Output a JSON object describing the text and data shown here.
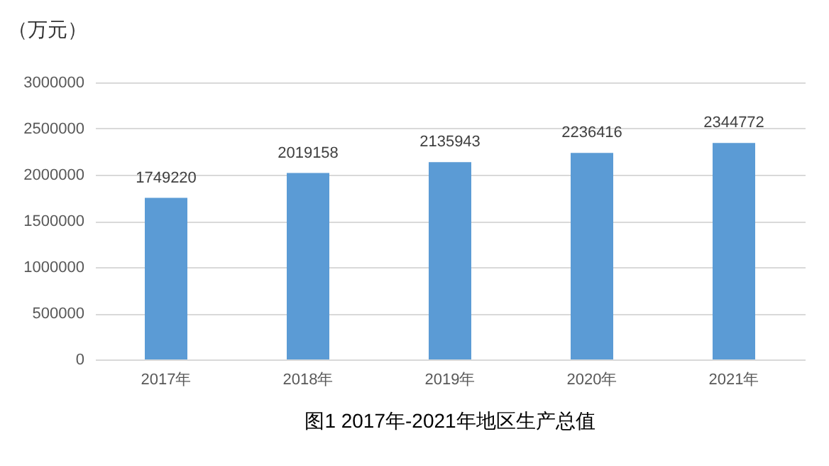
{
  "chart_data": {
    "type": "bar",
    "title": "图1  2017年-2021年地区生产总值",
    "ylabel": "（万元）",
    "categories": [
      "2017年",
      "2018年",
      "2019年",
      "2020年",
      "2021年"
    ],
    "values": [
      1749220,
      2019158,
      2135943,
      2236416,
      2344772
    ],
    "color": "#5b9bd5",
    "ylim": [
      0,
      3000000
    ],
    "yticks": [
      0,
      500000,
      1000000,
      1500000,
      2000000,
      2500000,
      3000000
    ],
    "grid": "y",
    "data_labels": true
  }
}
